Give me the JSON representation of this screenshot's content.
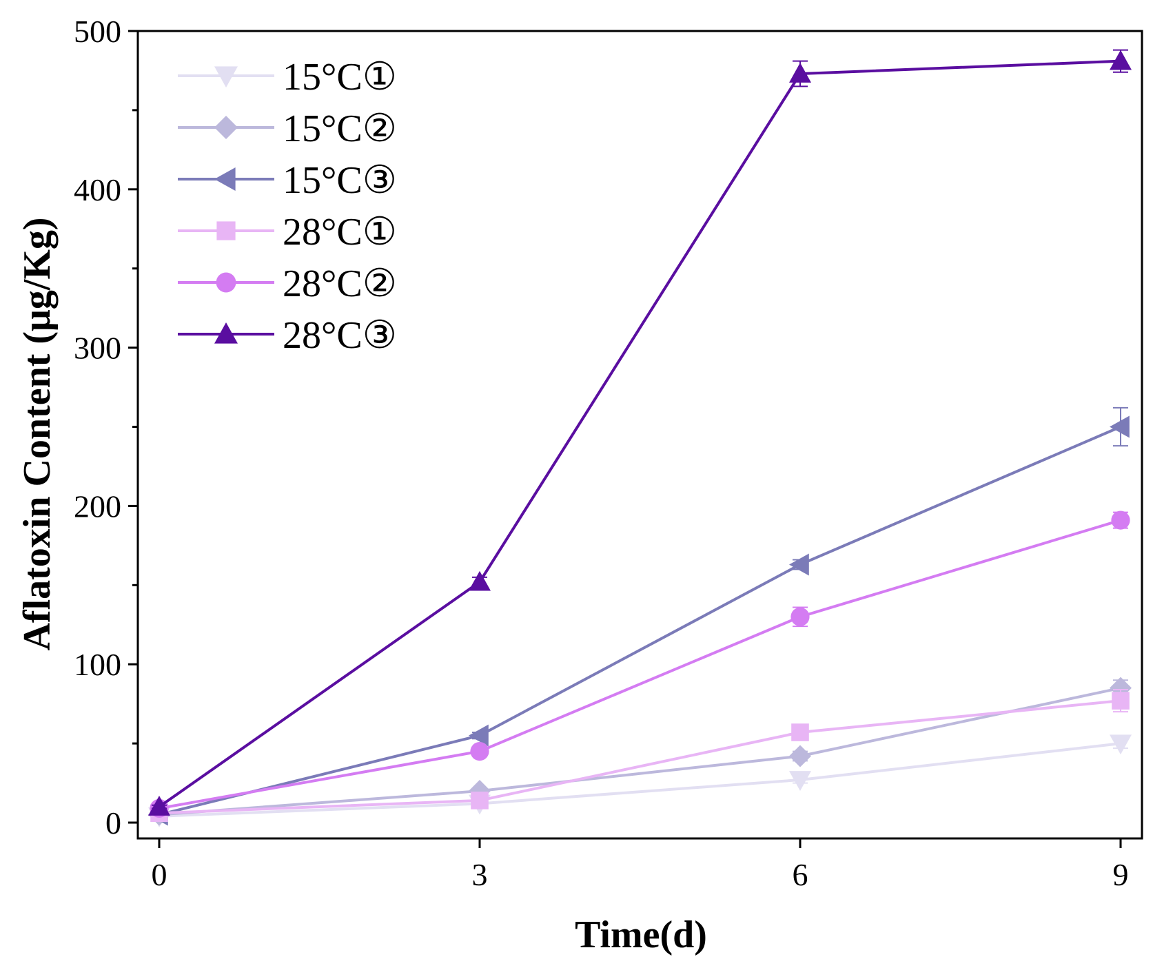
{
  "chart_data": {
    "type": "line",
    "title": "",
    "xlabel": "Time(d)",
    "ylabel": "Aflatoxin Content (μg/Kg)",
    "x": [
      0,
      3,
      6,
      9
    ],
    "xticks": [
      0,
      3,
      6,
      9
    ],
    "xlim": [
      -0.2,
      9.2
    ],
    "yticks": [
      0,
      100,
      200,
      300,
      400,
      500
    ],
    "ylim": [
      -10,
      500
    ],
    "legend_position": "top-left",
    "series": [
      {
        "name": "15°C①",
        "color": "#e2dff2",
        "marker": "triangle-down",
        "values": [
          4,
          12,
          27,
          50
        ],
        "errors": [
          1,
          1,
          2,
          3
        ]
      },
      {
        "name": "15°C②",
        "color": "#bcb8dc",
        "marker": "diamond",
        "values": [
          5,
          20,
          42,
          85
        ],
        "errors": [
          1,
          1,
          3,
          5
        ]
      },
      {
        "name": "15°C③",
        "color": "#7b7bb8",
        "marker": "triangle-left",
        "values": [
          5,
          55,
          163,
          250
        ],
        "errors": [
          1,
          2,
          3,
          12
        ]
      },
      {
        "name": "28°C①",
        "color": "#e8b5f5",
        "marker": "square",
        "values": [
          6,
          14,
          57,
          77
        ],
        "errors": [
          1,
          1,
          3,
          7
        ]
      },
      {
        "name": "28°C②",
        "color": "#d47cf2",
        "marker": "circle",
        "values": [
          9,
          45,
          130,
          191
        ],
        "errors": [
          1,
          2,
          6,
          5
        ]
      },
      {
        "name": "28°C③",
        "color": "#5a0ea0",
        "marker": "triangle-up",
        "values": [
          10,
          152,
          473,
          481
        ],
        "errors": [
          1,
          3,
          8,
          7
        ]
      }
    ]
  }
}
